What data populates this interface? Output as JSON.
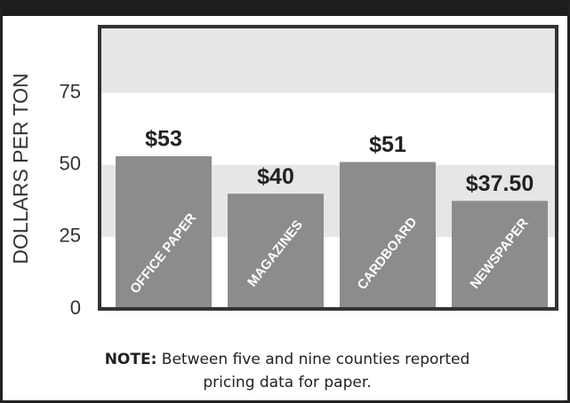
{
  "chart_data": {
    "type": "bar",
    "y_label": "DOLLARS PER TON",
    "categories": [
      "OFFICE PAPER",
      "MAGAZINES",
      "CARDBOARD",
      "NEWSPAPER"
    ],
    "values": [
      53,
      40,
      51,
      37.5
    ],
    "value_labels": [
      "$53",
      "$40",
      "$51",
      "$37.50"
    ],
    "color": "#8c8c8c",
    "ylim": [
      0,
      98
    ],
    "yticks": [
      0,
      25,
      50,
      75
    ],
    "grid_bands": true,
    "note_label": "NOTE:",
    "note": "Between five and nine counties reported pricing data for paper."
  }
}
